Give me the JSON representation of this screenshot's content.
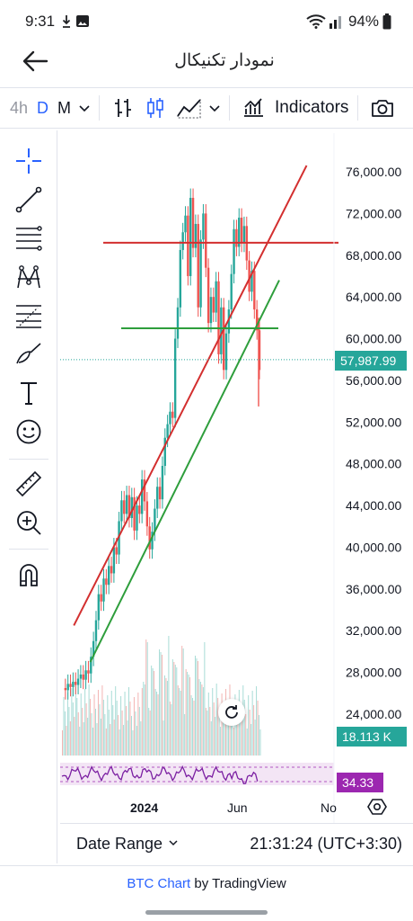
{
  "status_bar": {
    "time": "9:31",
    "notification_icons": [
      "download-icon",
      "image-icon"
    ],
    "battery": "94%"
  },
  "app_bar": {
    "title": "نمودار تکنیکال",
    "back_icon": "arrow-left-icon"
  },
  "toolbar": {
    "timeframes": [
      "4h",
      "D",
      "M"
    ],
    "selected_timeframe": "D",
    "indicators_label": "Indicators"
  },
  "left_tools": [
    "crosshair-icon",
    "trend-line-icon",
    "horizontal-lines-icon",
    "pattern-icon",
    "fib-icon",
    "brush-icon",
    "text-icon",
    "emoji-icon",
    "ruler-icon",
    "zoom-in-icon",
    "magnet-icon"
  ],
  "chart_data": {
    "type": "candlestick",
    "symbol": "BTC",
    "x_ticks": [
      "2024",
      "Jun",
      "No"
    ],
    "y_ticks": [
      "76,000.00",
      "72,000.00",
      "68,000.00",
      "64,000.00",
      "60,000.00",
      "56,000.00",
      "52,000.00",
      "48,000.00",
      "44,000.00",
      "40,000.00",
      "36,000.00",
      "32,000.00",
      "28,000.00",
      "24,000.00"
    ],
    "ylim": [
      22500,
      77500
    ],
    "last_price": "57,987.99",
    "volume_label": "18.113 K",
    "rsi_value": "34.33",
    "drawings": [
      {
        "type": "trend-line",
        "color": "#d32f2f",
        "from": [
          0.05,
          32500
        ],
        "to": [
          0.9,
          76600
        ]
      },
      {
        "type": "trend-line",
        "color": "#2e9e3c",
        "from": [
          0.11,
          29000
        ],
        "to": [
          0.8,
          65600
        ]
      },
      {
        "type": "horizontal",
        "color": "#d32f2f",
        "price": 69200
      },
      {
        "type": "horizontal",
        "color": "#2e9e3c",
        "price": 61000
      }
    ],
    "price_path": [
      26500,
      26300,
      26900,
      26600,
      27100,
      26800,
      27400,
      27800,
      27300,
      28200,
      27900,
      29500,
      31000,
      33000,
      35500,
      34800,
      37000,
      36400,
      38200,
      37500,
      40000,
      39300,
      42500,
      44500,
      43200,
      45000,
      42800,
      44800,
      41600,
      44000,
      43200,
      46500,
      44400,
      42000,
      39800,
      41500,
      43700,
      45800,
      44600,
      47800,
      50500,
      51800,
      53000,
      52400,
      60000,
      63000,
      68500,
      70200,
      71800,
      66000,
      73500,
      68700,
      71000,
      63000,
      69500,
      72000,
      66800,
      61500,
      64000,
      62500,
      65500,
      58500,
      63000,
      57000,
      60500,
      62800,
      66200,
      70500,
      68800,
      71600,
      69200,
      70800,
      67500,
      64500,
      66500,
      62800,
      60800,
      57000
    ]
  },
  "footer": {
    "date_range_label": "Date Range",
    "clock": "21:31:24 (UTC+3:30)"
  },
  "attribution": {
    "link_text": "BTC Chart",
    "suffix": " by TradingView"
  }
}
